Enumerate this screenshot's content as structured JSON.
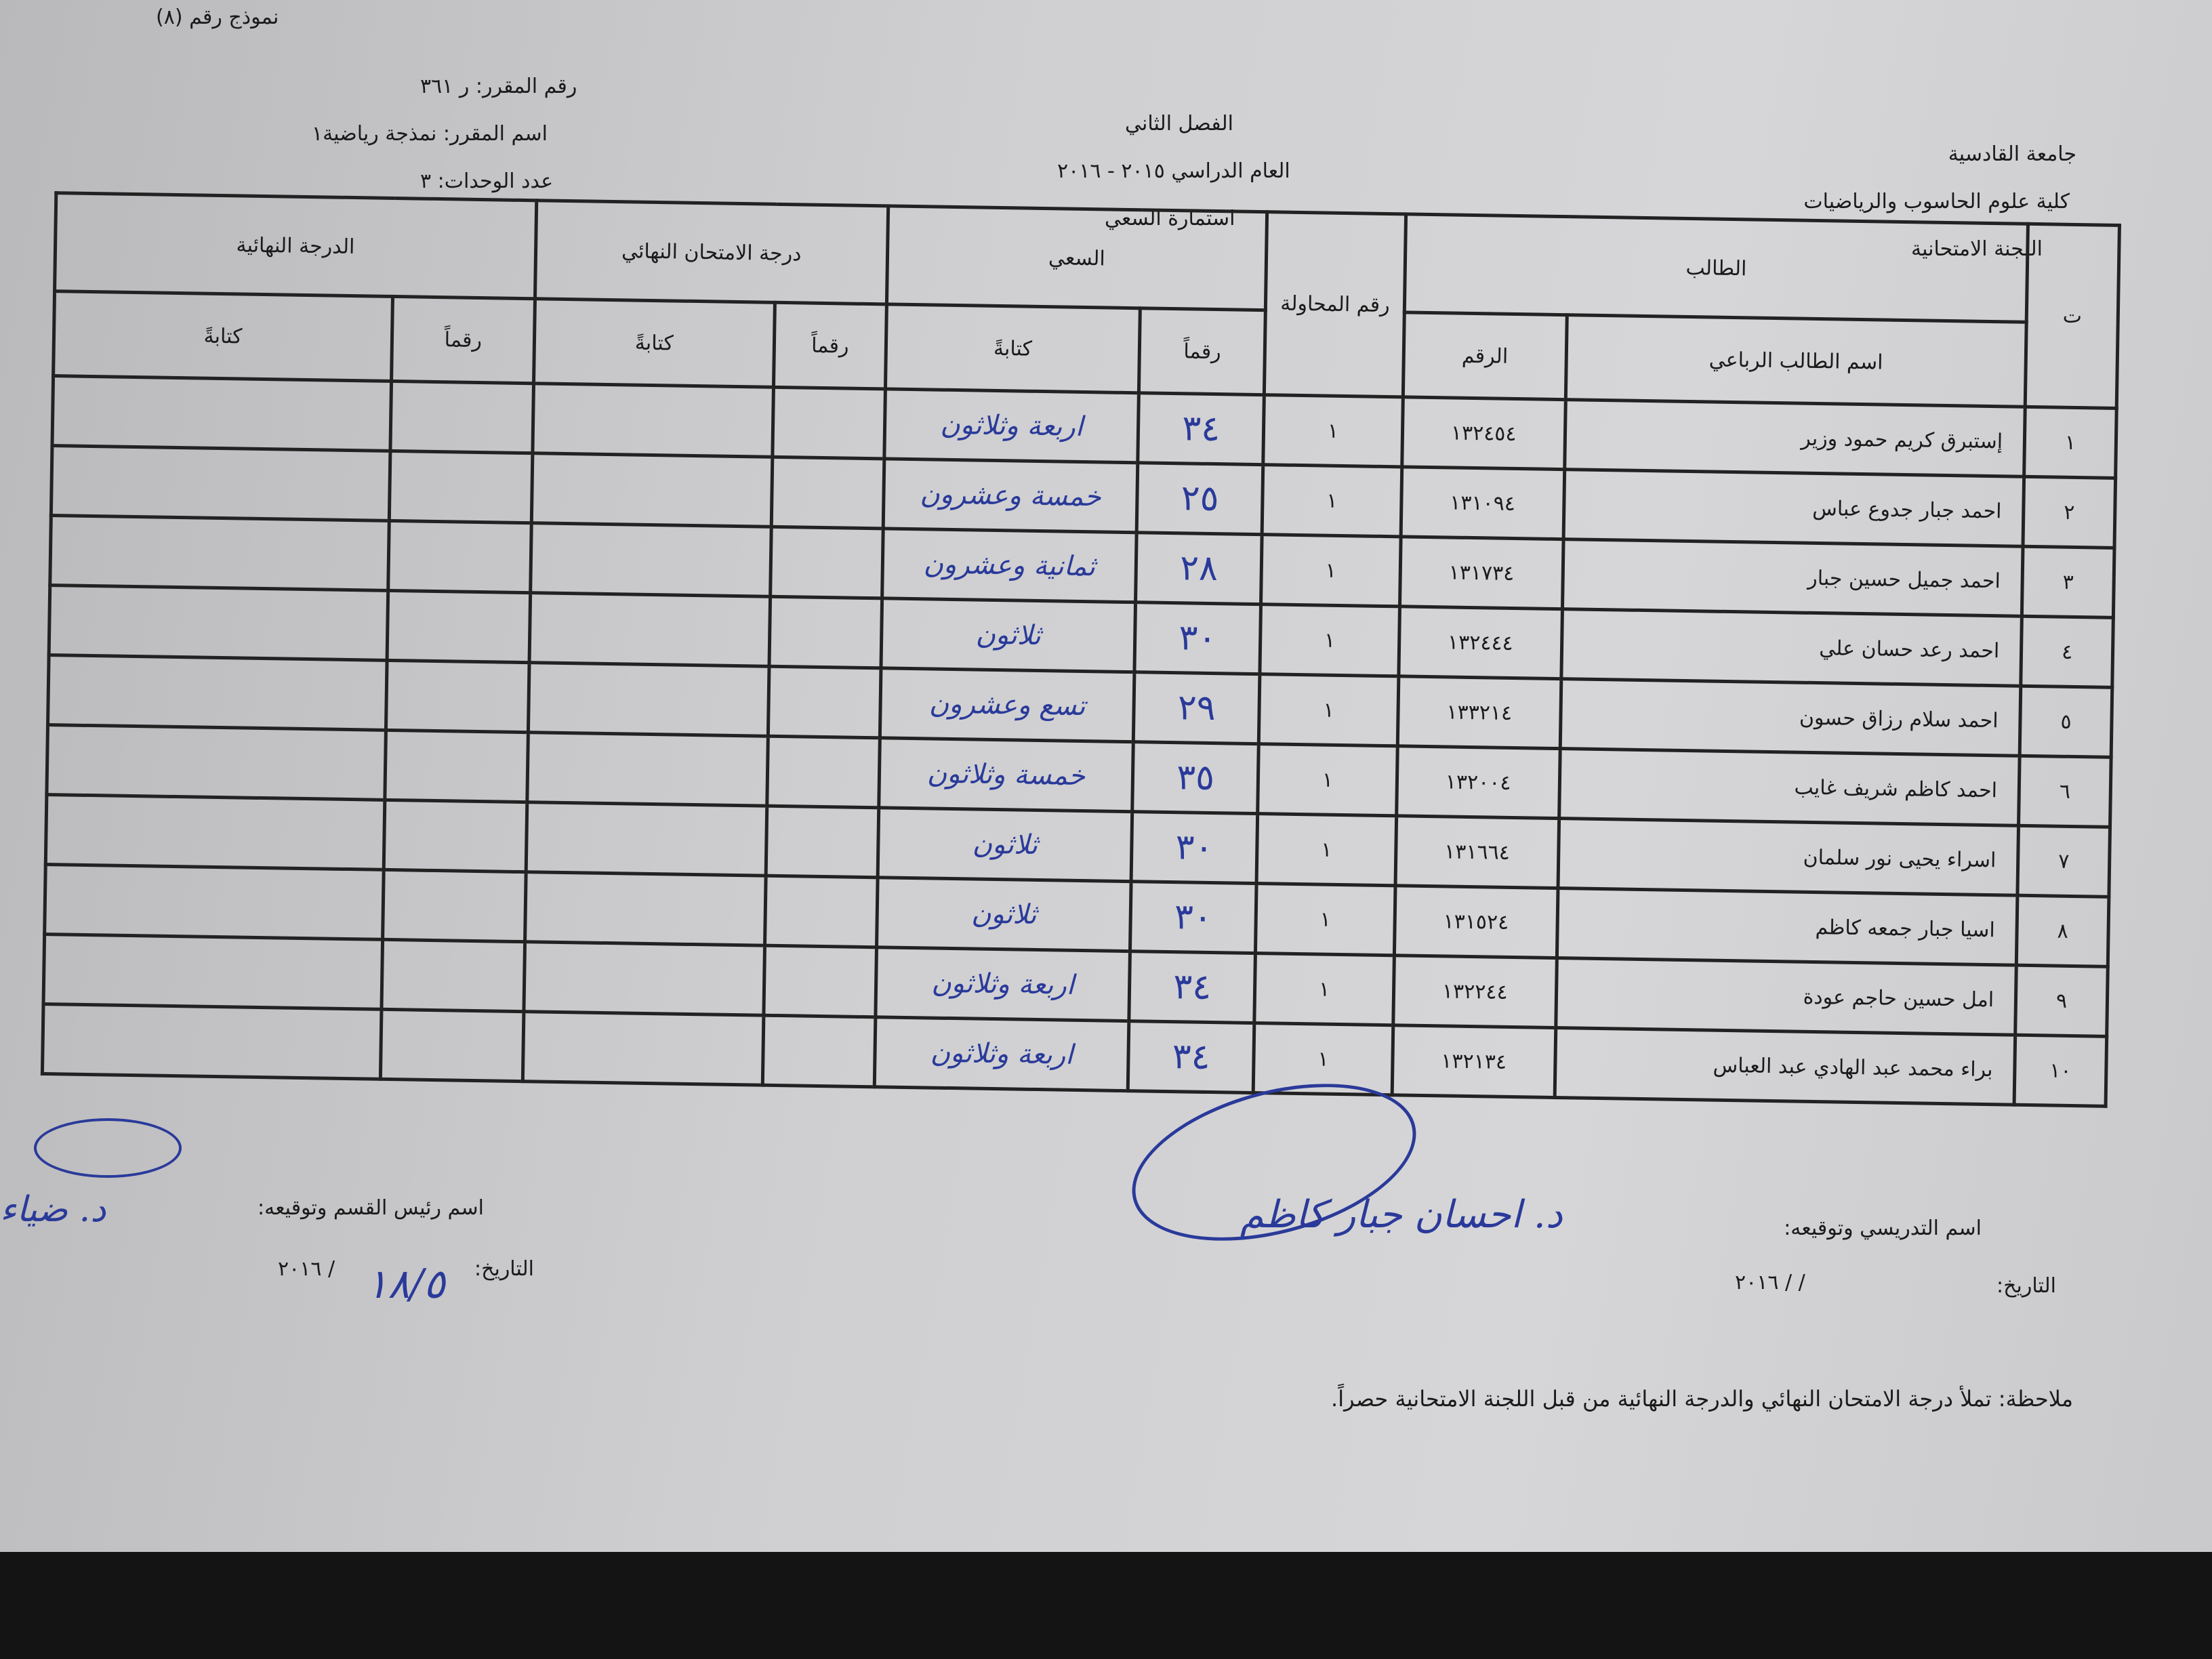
{
  "form_number": "نموذج رقم (٨)",
  "institution": {
    "university": "جامعة القادسية",
    "college": "كلية علوم الحاسوب والرياضيات",
    "committee": "اللجنة الامتحانية"
  },
  "center": {
    "semester": "الفصل الثاني",
    "academic_year": "العام الدراسي ٢٠١٥ - ٢٠١٦",
    "form_title": "استمارة السعي"
  },
  "course": {
    "number": "رقم المقرر: ر ٣٦١",
    "name": "اسم المقرر: نمذجة رياضية١",
    "units": "عدد الوحدات: ٣"
  },
  "table": {
    "headers": {
      "seq": "ت",
      "student": "الطالب",
      "student_name": "اسم الطالب الرباعي",
      "student_id": "الرقم",
      "attempt": "رقم المحاولة",
      "coursework": "السعي",
      "final_exam": "درجة الامتحان النهائي",
      "final_grade": "الدرجة النهائية",
      "digits": "رقماً",
      "words": "كتابةً"
    },
    "rows": [
      {
        "seq": "١",
        "name": "إستبرق كريم حمود وزير",
        "id": "١٣٢٤٥٤",
        "attempt": "١",
        "grade": "٣٤",
        "grade_words": "اربعة وثلاثون"
      },
      {
        "seq": "٢",
        "name": "احمد جبار جدوع عباس",
        "id": "١٣١٠٩٤",
        "attempt": "١",
        "grade": "٢٥",
        "grade_words": "خمسة وعشرون"
      },
      {
        "seq": "٣",
        "name": "احمد جميل حسين جبار",
        "id": "١٣١٧٣٤",
        "attempt": "١",
        "grade": "٢٨",
        "grade_words": "ثمانية وعشرون"
      },
      {
        "seq": "٤",
        "name": "احمد رعد حسان علي",
        "id": "١٣٢٤٤٤",
        "attempt": "١",
        "grade": "٣٠",
        "grade_words": "ثلاثون"
      },
      {
        "seq": "٥",
        "name": "احمد سلام رزاق حسون",
        "id": "١٣٣٢١٤",
        "attempt": "١",
        "grade": "٢٩",
        "grade_words": "تسع وعشرون"
      },
      {
        "seq": "٦",
        "name": "احمد كاظم شريف غايب",
        "id": "١٣٢٠٠٤",
        "attempt": "١",
        "grade": "٣٥",
        "grade_words": "خمسة وثلاثون"
      },
      {
        "seq": "٧",
        "name": "اسراء يحيى نور سلمان",
        "id": "١٣١٦٦٤",
        "attempt": "١",
        "grade": "٣٠",
        "grade_words": "ثلاثون"
      },
      {
        "seq": "٨",
        "name": "اسيا جبار جمعه كاظم",
        "id": "١٣١٥٢٤",
        "attempt": "١",
        "grade": "٣٠",
        "grade_words": "ثلاثون"
      },
      {
        "seq": "٩",
        "name": "امل حسين حاجم عودة",
        "id": "١٣٢٢٤٤",
        "attempt": "١",
        "grade": "٣٤",
        "grade_words": "اربعة وثلاثون"
      },
      {
        "seq": "١٠",
        "name": "براء محمد عبد الهادي عبد العباس",
        "id": "١٣٢١٣٤",
        "attempt": "١",
        "grade": "٣٤",
        "grade_words": "اربعة وثلاثون"
      }
    ]
  },
  "footer": {
    "instructor_label": "اسم التدريسي وتوقيعه:",
    "instructor_name": "د. احسان جبار كاظم",
    "instructor_date_label": "التاريخ:",
    "instructor_date": "/   / ٢٠١٦",
    "head_label": "اسم رئيس القسم وتوقيعه:",
    "head_name": "د. ضياء",
    "head_date_label": "التاريخ:",
    "head_date_handwritten": "١٨/٥",
    "head_date": "/ ٢٠١٦",
    "note": "ملاحظة: تملأ درجة الامتحان النهائي والدرجة النهائية من قبل اللجنة الامتحانية حصراً."
  }
}
